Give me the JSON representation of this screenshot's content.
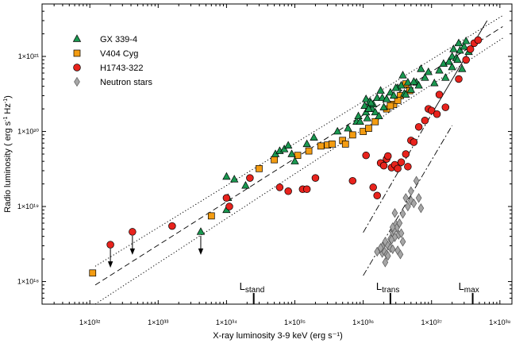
{
  "chart_data": {
    "type": "scatter",
    "xscale": "log",
    "yscale": "log",
    "xlim": [
      2e+31,
      1.5e+38
    ],
    "ylim": [
      5e+17,
      5e+21
    ],
    "xlabel": "X-ray luminosity 3-9 keV (erg s⁻¹)",
    "ylabel_main": "Radio luminosity  ( erg s",
    "ylabel_sup1": "-1",
    "ylabel_mid": " Hz",
    "ylabel_sup2": "-1",
    "ylabel_end": ")",
    "x_ticks": [
      {
        "value": 1e+32,
        "label": "1×10³²"
      },
      {
        "value": 1e+33,
        "label": "1×10³³"
      },
      {
        "value": 1e+34,
        "label": "1×10³⁴"
      },
      {
        "value": 1e+35,
        "label": "1×10³⁵"
      },
      {
        "value": 1e+36,
        "label": "1×10³⁶"
      },
      {
        "value": 1e+37,
        "label": "1×10³⁷"
      },
      {
        "value": 1e+38,
        "label": "1×10³⁸"
      }
    ],
    "y_ticks": [
      {
        "value": 1e+18,
        "label": "1×10¹⁸"
      },
      {
        "value": 1e+19,
        "label": "1×10¹⁹"
      },
      {
        "value": 1e+20,
        "label": "1×10²⁰"
      },
      {
        "value": 1e+21,
        "label": "1×10²¹"
      }
    ],
    "legend": [
      {
        "name": "GX 339-4",
        "marker": "triangle",
        "color": "#1a9850"
      },
      {
        "name": "V404 Cyg",
        "marker": "square",
        "color": "#f39c12"
      },
      {
        "name": "H1743-322",
        "marker": "circle",
        "color": "#e8231d"
      },
      {
        "name": "Neutron stars",
        "marker": "diamond",
        "color": "#a6a6a6"
      }
    ],
    "lines": [
      {
        "name": "standard-track-fit",
        "style": "dashed",
        "x": [
          1.2e+32,
          1.1e+38
        ],
        "y": [
          9e+17,
          2.5e+21
        ]
      },
      {
        "name": "upper-dotted-envelope",
        "style": "dotted",
        "x": [
          1.2e+32,
          1.1e+38
        ],
        "y": [
          1.6e+18,
          3.5e+21
        ]
      },
      {
        "name": "lower-dotted-envelope",
        "style": "dotted",
        "x": [
          1.2e+32,
          1.1e+38
        ],
        "y": [
          5e+17,
          1.75e+21
        ]
      },
      {
        "name": "steep-track-fit",
        "style": "solid",
        "x": [
          1e+37,
          6.5e+37
        ],
        "y": [
          1.7e+20,
          3e+21
        ]
      },
      {
        "name": "steep-track-extension",
        "style": "dashdot",
        "x": [
          1e+36,
          1e+37
        ],
        "y": [
          4.5e+18,
          1.7e+20
        ]
      },
      {
        "name": "neutron-star-fit",
        "style": "dashdot",
        "x": [
          1e+36,
          2e+37
        ],
        "y": [
          1.2e+18,
          1.2e+20
        ]
      }
    ],
    "markers": [
      {
        "label": "L",
        "sub": "stand",
        "x": 2.5e+34
      },
      {
        "label": "L",
        "sub": "trans",
        "x": 2.5e+36
      },
      {
        "label": "L",
        "sub": "max",
        "x": 4e+37
      }
    ],
    "upper_limits": [
      {
        "series": "H1743-322",
        "x": 2e+32,
        "y": 3.1e+18
      },
      {
        "series": "H1743-322",
        "x": 4.2e+32,
        "y": 4.6e+18
      },
      {
        "series": "GX 339-4",
        "x": 4.2e+33,
        "y": 4.6e+18
      }
    ],
    "series": [
      {
        "name": "GX 339-4",
        "marker": "triangle",
        "color": "#1a9850",
        "x": [
          1e+34,
          1.3e+34,
          1.9e+34,
          5.2e+34,
          6e+34,
          7e+34,
          8e+34,
          9e+34,
          1e+35,
          1.5e+35,
          1.9e+35,
          4.2e+35,
          6e+35,
          8e+35,
          8.5e+35,
          9e+35,
          1.05e+36,
          1.1e+36,
          1.15e+36,
          1.25e+36,
          1.35e+36,
          1.4e+36,
          1.5e+36,
          1.6e+36,
          1.7e+36,
          1.8e+36,
          1.9e+36,
          2e+36,
          2.2e+36,
          2.5e+36,
          2.8e+36,
          3.2e+36,
          3.6e+36,
          4e+36,
          4.5e+36,
          5e+36,
          6e+36,
          7e+36,
          8e+36,
          9e+36,
          1.1e+37,
          1.3e+37,
          1.5e+37,
          1.8e+37,
          2e+37,
          2.3e+37,
          2.6e+37,
          2.5e+37,
          3e+37,
          3.5e+37,
          3.2e+37,
          2.1e+37,
          2.4e+37,
          2.8e+37,
          2e+37,
          1.6e+37,
          4.2e+36,
          5.5e+36,
          6.5e+36,
          3e+36,
          2.2e+36,
          3.8e+36,
          1.3e+36,
          1.1e+36,
          1.2e+36,
          1e+34,
          1.05e+34
        ],
        "y": [
          9e+18,
          2.3e+19,
          1.9e+19,
          5e+19,
          5.5e+19,
          5.8e+19,
          6.5e+19,
          5e+19,
          4e+19,
          6.8e+19,
          8.3e+19,
          1e+20,
          1.1e+20,
          1.35e+20,
          1.6e+20,
          1.35e+20,
          2.2e+20,
          2.7e+20,
          1.5e+20,
          2.5e+20,
          2e+20,
          2.3e+20,
          1.8e+20,
          2.8e+20,
          1.6e+20,
          3.5e+20,
          2.8e+20,
          2.1e+20,
          2.7e+20,
          3.3e+20,
          3e+20,
          3.8e+20,
          4.1e+20,
          3.2e+20,
          4.5e+20,
          3.6e+20,
          4.5e+20,
          6.8e+20,
          5.2e+20,
          6.2e+20,
          4.4e+20,
          6.5e+20,
          8e+20,
          8.5e+20,
          1e+21,
          9.5e+20,
          1.2e+21,
          1.5e+21,
          1.35e+21,
          1.15e+21,
          1.6e+21,
          1.25e+21,
          9e+20,
          6.8e+20,
          7.2e+20,
          5.2e+20,
          3.1e+20,
          4.6e+20,
          4.1e+20,
          3.8e+20,
          2.7e+20,
          5.6e+20,
          2.4e+20,
          1.8e+20,
          2e+20,
          2.5e+19,
          1.3e+19
        ]
      },
      {
        "name": "V404 Cyg",
        "marker": "square",
        "color": "#f39c12",
        "x": [
          1.1e+32,
          6e+33,
          3e+34,
          5e+34,
          1.1e+35,
          1.6e+35,
          2.4e+35,
          3e+35,
          3.5e+35,
          5e+35,
          5.5e+35,
          7e+35,
          1e+36,
          1.2e+36,
          1.5e+36,
          2.2e+36,
          2.8e+36,
          3.5e+36,
          4.2e+36,
          4.8e+36,
          2.5e+36,
          3.2e+36
        ],
        "y": [
          1.3e+18,
          7.5e+18,
          3.2e+19,
          4.2e+19,
          4.8e+19,
          5.5e+19,
          6.4e+19,
          6.6e+19,
          6.8e+19,
          7.6e+19,
          6.8e+19,
          9e+19,
          1e+20,
          1.1e+20,
          1.35e+20,
          2e+20,
          2.3e+20,
          3e+20,
          4.3e+20,
          3.5e+20,
          2.2e+20,
          2.6e+20
        ]
      },
      {
        "name": "H1743-322",
        "marker": "circle",
        "color": "#e8231d",
        "x": [
          1.6e+33,
          1e+34,
          1.1e+34,
          2.2e+34,
          6e+34,
          8e+34,
          1.3e+35,
          1.5e+35,
          2e+35,
          7e+35,
          1.1e+36,
          1.4e+36,
          1.6e+36,
          1.8e+36,
          2e+36,
          2.2e+36,
          2.3e+36,
          2.6e+36,
          2.9e+36,
          3.2e+36,
          3.6e+36,
          4.2e+36,
          4.5e+36,
          5e+36,
          5.5e+36,
          6.5e+36,
          8e+36,
          9e+36,
          1e+37,
          1.2e+37,
          1.3e+37,
          1.6e+37,
          2.5e+37,
          3.2e+37,
          3.7e+37,
          4.2e+37,
          4.8e+37
        ],
        "y": [
          5.5e+18,
          1.3e+19,
          1e+19,
          2.4e+19,
          1.8e+19,
          1.6e+19,
          1.7e+19,
          1.7e+19,
          2.4e+19,
          2.2e+19,
          4.8e+19,
          1.8e+19,
          1.4e+19,
          3.8e+19,
          3.5e+19,
          4.3e+19,
          4.7e+19,
          3.3e+19,
          3.6e+19,
          3.2e+19,
          3.9e+19,
          5e+19,
          3.4e+19,
          7.6e+19,
          7.2e+19,
          1.15e+20,
          1.4e+20,
          2e+20,
          1.9e+20,
          1.7e+20,
          3.1e+20,
          2.1e+20,
          5e+20,
          9e+20,
          1.25e+21,
          1.5e+21,
          1.65e+21
        ]
      },
      {
        "name": "Neutron stars",
        "marker": "diamond",
        "color": "#a6a6a6",
        "x": [
          1.6e+36,
          1.9e+36,
          2.1e+36,
          2.3e+36,
          2.5e+36,
          2.7e+36,
          3e+36,
          3.3e+36,
          3.6e+36,
          2.9e+36,
          2.2e+36,
          2.5e+36,
          2.7e+36,
          3.1e+36,
          3.4e+36,
          3.8e+36,
          4.5e+36,
          5e+36,
          5.5e+36,
          6.5e+36,
          7e+36,
          2.8e+36,
          3.2e+36,
          3.8e+36,
          5e+36,
          6e+36,
          2e+36,
          2.3e+36,
          2.6e+36,
          2.7e+36,
          2.9e+36,
          4.2e+36,
          1.9e+36,
          2.1e+36,
          1.8e+36,
          3.5e+36
        ],
        "y": [
          2.5e+18,
          2.4e+18,
          3.4e+18,
          3e+18,
          2.8e+18,
          4.5e+18,
          5.8e+18,
          4.2e+18,
          4.4e+18,
          3.9e+18,
          2.3e+18,
          3.7e+18,
          2.7e+18,
          5.2e+18,
          6e+18,
          8e+18,
          1e+19,
          1.2e+19,
          1.1e+19,
          1.3e+19,
          9.5e+18,
          4.8e+18,
          2.6e+18,
          3.4e+18,
          1.6e+19,
          2.2e+19,
          2.6e+18,
          2.2e+18,
          3.6e+18,
          5.3e+18,
          8.2e+18,
          1.3e+19,
          2.9e+18,
          1.8e+18,
          2.8e+18,
          2.3e+18
        ]
      }
    ]
  }
}
